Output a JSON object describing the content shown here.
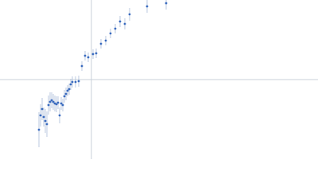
{
  "chart_data": {
    "type": "scatter",
    "color": "#3a6bbf",
    "error_color": "#aabbd8",
    "xlim": [
      -115,
      285
    ],
    "ylim": [
      -100,
      100
    ],
    "x": [
      -66,
      -64,
      -62,
      -60,
      -58,
      -56,
      -54,
      -52,
      -50,
      -48,
      -46,
      -44,
      -42,
      -40,
      -38,
      -36,
      -34,
      -32,
      -30,
      -28,
      -26,
      -24,
      -20,
      -16,
      -12,
      -8,
      -4,
      2,
      6,
      12,
      18,
      24,
      30,
      36,
      42,
      48,
      70,
      94
    ],
    "values": [
      -63,
      -45,
      -37,
      -47,
      -52,
      -56,
      -32,
      -28,
      -26,
      -28,
      -30,
      -31,
      -29,
      -45,
      -30,
      -32,
      -21,
      -18,
      -14,
      -12,
      -6,
      -3,
      -3,
      -2,
      17,
      30,
      28,
      32,
      33,
      45,
      49,
      58,
      64,
      73,
      70,
      82,
      92,
      96
    ],
    "errors": [
      22,
      14,
      14,
      12,
      15,
      16,
      12,
      12,
      10,
      10,
      10,
      10,
      8,
      10,
      8,
      8,
      8,
      8,
      7,
      7,
      7,
      7,
      7,
      7,
      6,
      6,
      6,
      6,
      6,
      6,
      6,
      6,
      6,
      7,
      7,
      8,
      8,
      8
    ]
  }
}
